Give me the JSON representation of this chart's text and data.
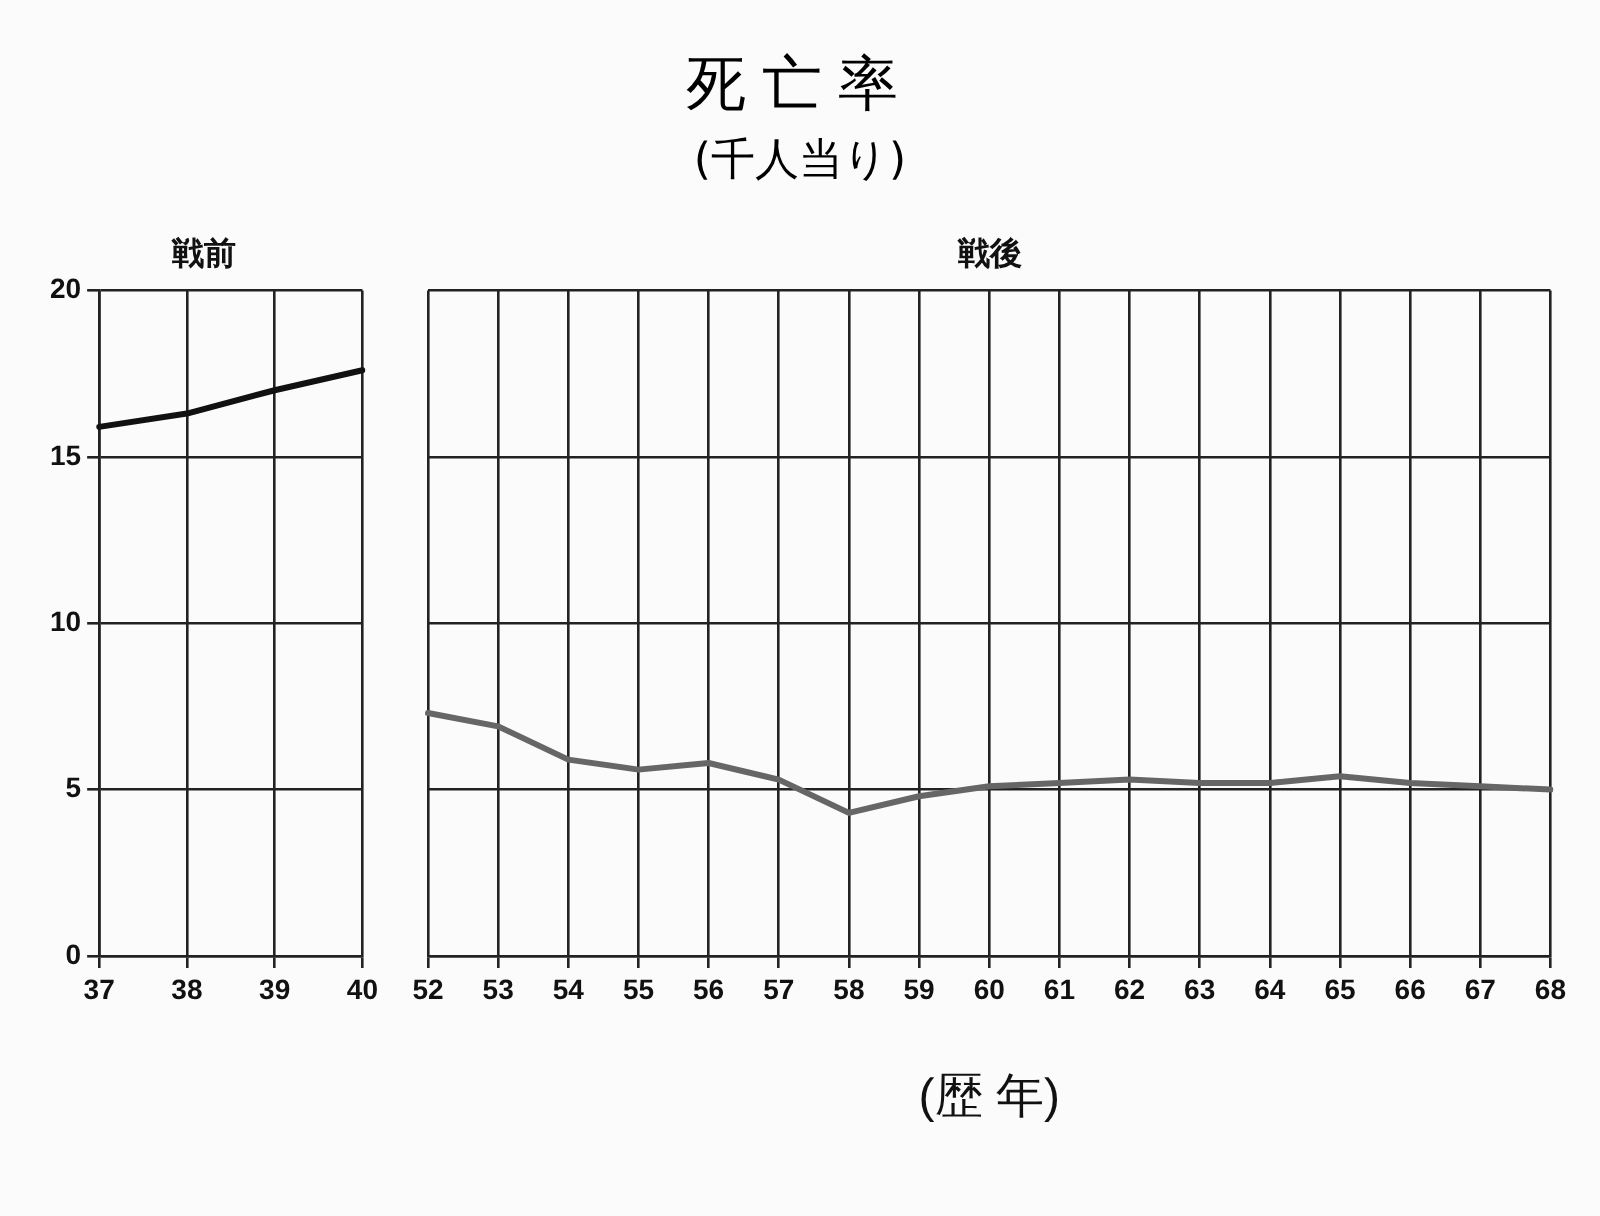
{
  "chart_data": [
    {
      "type": "other",
      "title": "死亡率",
      "subtitle": "(千人当り)"
    },
    {
      "type": "line",
      "title": "戦前",
      "categories": [
        "37",
        "38",
        "39",
        "40"
      ],
      "series": [
        {
          "color": "#111111",
          "values": [
            15.9,
            16.3,
            17.0,
            17.6
          ]
        }
      ],
      "ylim": [
        0,
        20
      ],
      "yticks": [
        0,
        5,
        10,
        15,
        20
      ],
      "grid": true,
      "marker": "none",
      "line_style": "solid"
    },
    {
      "type": "line",
      "title": "戦後",
      "xlabel": "(歴 年)",
      "categories": [
        "52",
        "53",
        "54",
        "55",
        "56",
        "57",
        "58",
        "59",
        "60",
        "61",
        "62",
        "63",
        "64",
        "65",
        "66",
        "67",
        "68"
      ],
      "series": [
        {
          "color": "#666666",
          "values": [
            7.3,
            6.9,
            5.9,
            5.6,
            5.8,
            5.3,
            4.3,
            4.8,
            5.1,
            5.2,
            5.3,
            5.2,
            5.2,
            5.4,
            5.2,
            5.1,
            5.0
          ]
        }
      ],
      "ylim": [
        0,
        20
      ],
      "yticks": [
        0,
        5,
        10,
        15,
        20
      ],
      "grid": true,
      "marker": "none",
      "line_style": "solid",
      "tick_labels": "x"
    }
  ]
}
